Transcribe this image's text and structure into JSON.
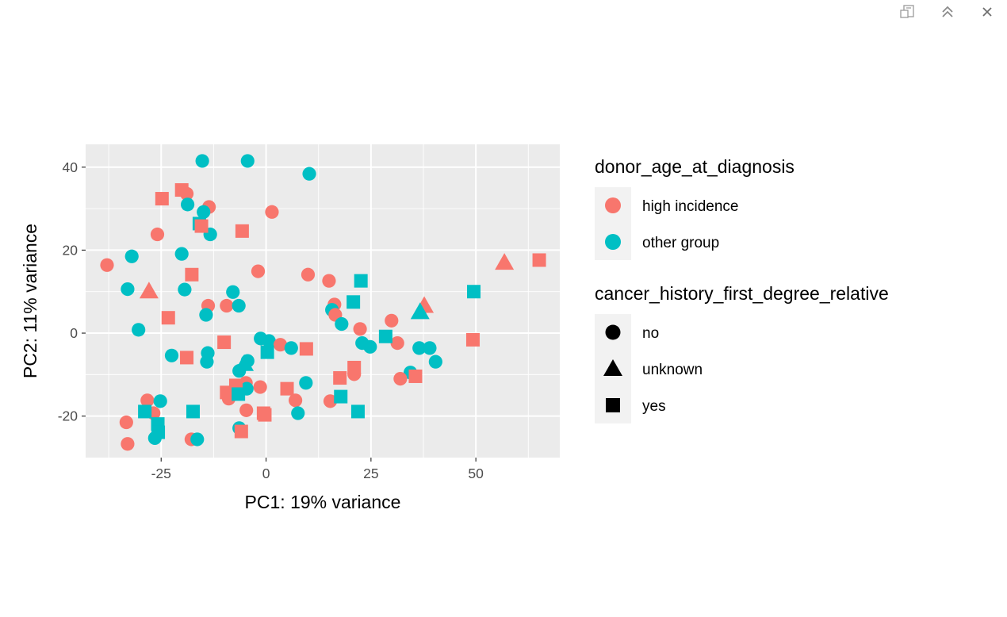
{
  "toolbar": {
    "items": [
      {
        "icon": "export-icon"
      },
      {
        "icon": "collapse-icon"
      },
      {
        "icon": "close-icon"
      }
    ]
  },
  "chart_data": {
    "type": "scatter",
    "xlabel": "PC1: 19% variance",
    "ylabel": "PC2: 11% variance",
    "xlim": [
      -43,
      70
    ],
    "ylim": [
      -30,
      45.5
    ],
    "x_ticks": [
      -25,
      0,
      25,
      50
    ],
    "x_tick_labels": [
      "-25",
      "0",
      "25",
      "50"
    ],
    "y_ticks": [
      -20,
      0,
      20,
      40
    ],
    "y_tick_labels": [
      "-20",
      "0",
      "20",
      "40"
    ],
    "grid": true,
    "panel_background": "#ebebeb",
    "legend_position": "right",
    "legends": [
      {
        "title": "donor_age_at_diagnosis",
        "key": "color",
        "entries": [
          {
            "label": "high incidence",
            "color": "#f8766d"
          },
          {
            "label": "other group",
            "color": "#00bfc4"
          }
        ]
      },
      {
        "title": "cancer_history_first_degree_relative",
        "key": "shape",
        "entries": [
          {
            "label": "no",
            "shape": "circle"
          },
          {
            "label": "unknown",
            "shape": "triangle"
          },
          {
            "label": "yes",
            "shape": "square"
          }
        ]
      }
    ],
    "points": [
      {
        "x": -15.2,
        "y": 41.5,
        "group": "other group",
        "shape": "no"
      },
      {
        "x": -4.4,
        "y": 41.5,
        "group": "other group",
        "shape": "no"
      },
      {
        "x": 10.3,
        "y": 38.4,
        "group": "other group",
        "shape": "no"
      },
      {
        "x": -18.9,
        "y": 33.6,
        "group": "high incidence",
        "shape": "no"
      },
      {
        "x": -13.6,
        "y": 30.4,
        "group": "high incidence",
        "shape": "no"
      },
      {
        "x": 1.4,
        "y": 29.2,
        "group": "high incidence",
        "shape": "no"
      },
      {
        "x": -18.7,
        "y": 31.0,
        "group": "other group",
        "shape": "no"
      },
      {
        "x": -14.9,
        "y": 29.2,
        "group": "other group",
        "shape": "no"
      },
      {
        "x": -25.9,
        "y": 23.8,
        "group": "high incidence",
        "shape": "no"
      },
      {
        "x": -13.3,
        "y": 23.8,
        "group": "other group",
        "shape": "no"
      },
      {
        "x": -37.9,
        "y": 16.4,
        "group": "high incidence",
        "shape": "no"
      },
      {
        "x": -32.0,
        "y": 18.5,
        "group": "other group",
        "shape": "no"
      },
      {
        "x": -20.1,
        "y": 19.1,
        "group": "other group",
        "shape": "no"
      },
      {
        "x": -1.9,
        "y": 14.9,
        "group": "high incidence",
        "shape": "no"
      },
      {
        "x": 10.0,
        "y": 14.1,
        "group": "high incidence",
        "shape": "no"
      },
      {
        "x": 15.0,
        "y": 12.6,
        "group": "high incidence",
        "shape": "no"
      },
      {
        "x": -33.0,
        "y": 10.6,
        "group": "other group",
        "shape": "no"
      },
      {
        "x": -19.4,
        "y": 10.5,
        "group": "other group",
        "shape": "no"
      },
      {
        "x": -7.9,
        "y": 9.9,
        "group": "other group",
        "shape": "no"
      },
      {
        "x": -13.8,
        "y": 6.6,
        "group": "high incidence",
        "shape": "no"
      },
      {
        "x": -9.4,
        "y": 6.6,
        "group": "high incidence",
        "shape": "no"
      },
      {
        "x": -6.5,
        "y": 6.6,
        "group": "other group",
        "shape": "no"
      },
      {
        "x": 16.3,
        "y": 6.9,
        "group": "high incidence",
        "shape": "no"
      },
      {
        "x": 15.7,
        "y": 5.6,
        "group": "other group",
        "shape": "no"
      },
      {
        "x": 16.5,
        "y": 4.4,
        "group": "high incidence",
        "shape": "no"
      },
      {
        "x": -14.3,
        "y": 4.4,
        "group": "other group",
        "shape": "no"
      },
      {
        "x": 18.0,
        "y": 2.2,
        "group": "other group",
        "shape": "no"
      },
      {
        "x": 29.9,
        "y": 3.0,
        "group": "high incidence",
        "shape": "no"
      },
      {
        "x": -30.4,
        "y": 0.8,
        "group": "other group",
        "shape": "no"
      },
      {
        "x": 22.4,
        "y": 1.0,
        "group": "high incidence",
        "shape": "no"
      },
      {
        "x": -1.3,
        "y": -1.3,
        "group": "other group",
        "shape": "no"
      },
      {
        "x": 0.7,
        "y": -1.9,
        "group": "other group",
        "shape": "no"
      },
      {
        "x": 3.4,
        "y": -2.8,
        "group": "high incidence",
        "shape": "no"
      },
      {
        "x": 6.0,
        "y": -3.6,
        "group": "other group",
        "shape": "no"
      },
      {
        "x": 22.9,
        "y": -2.4,
        "group": "other group",
        "shape": "no"
      },
      {
        "x": 24.8,
        "y": -3.3,
        "group": "other group",
        "shape": "no"
      },
      {
        "x": 31.3,
        "y": -2.4,
        "group": "high incidence",
        "shape": "no"
      },
      {
        "x": 36.5,
        "y": -3.6,
        "group": "other group",
        "shape": "no"
      },
      {
        "x": 39.0,
        "y": -3.6,
        "group": "other group",
        "shape": "no"
      },
      {
        "x": -22.5,
        "y": -5.4,
        "group": "other group",
        "shape": "no"
      },
      {
        "x": -13.9,
        "y": -4.8,
        "group": "other group",
        "shape": "no"
      },
      {
        "x": -14.1,
        "y": -6.9,
        "group": "other group",
        "shape": "no"
      },
      {
        "x": -4.4,
        "y": -6.7,
        "group": "other group",
        "shape": "no"
      },
      {
        "x": -6.4,
        "y": -9.1,
        "group": "other group",
        "shape": "no"
      },
      {
        "x": 40.4,
        "y": -6.9,
        "group": "other group",
        "shape": "no"
      },
      {
        "x": 34.4,
        "y": -9.5,
        "group": "other group",
        "shape": "no"
      },
      {
        "x": 21.0,
        "y": -9.9,
        "group": "high incidence",
        "shape": "no"
      },
      {
        "x": 32.0,
        "y": -11.0,
        "group": "high incidence",
        "shape": "no"
      },
      {
        "x": -4.8,
        "y": -12.0,
        "group": "high incidence",
        "shape": "no"
      },
      {
        "x": 9.5,
        "y": -12.0,
        "group": "other group",
        "shape": "no"
      },
      {
        "x": -1.4,
        "y": -13.0,
        "group": "high incidence",
        "shape": "no"
      },
      {
        "x": -4.6,
        "y": -13.4,
        "group": "other group",
        "shape": "no"
      },
      {
        "x": -8.9,
        "y": -15.8,
        "group": "high incidence",
        "shape": "no"
      },
      {
        "x": 7.0,
        "y": -16.2,
        "group": "high incidence",
        "shape": "no"
      },
      {
        "x": 15.3,
        "y": -16.4,
        "group": "high incidence",
        "shape": "no"
      },
      {
        "x": -28.3,
        "y": -16.2,
        "group": "high incidence",
        "shape": "no"
      },
      {
        "x": -25.2,
        "y": -16.4,
        "group": "other group",
        "shape": "no"
      },
      {
        "x": -4.7,
        "y": -18.6,
        "group": "high incidence",
        "shape": "no"
      },
      {
        "x": 7.6,
        "y": -19.3,
        "group": "other group",
        "shape": "no"
      },
      {
        "x": -33.3,
        "y": -21.5,
        "group": "high incidence",
        "shape": "no"
      },
      {
        "x": -26.8,
        "y": -19.3,
        "group": "high incidence",
        "shape": "no"
      },
      {
        "x": -6.4,
        "y": -22.9,
        "group": "other group",
        "shape": "no"
      },
      {
        "x": -26.5,
        "y": -25.3,
        "group": "other group",
        "shape": "no"
      },
      {
        "x": -17.8,
        "y": -25.6,
        "group": "high incidence",
        "shape": "no"
      },
      {
        "x": -16.4,
        "y": -25.6,
        "group": "other group",
        "shape": "no"
      },
      {
        "x": -33.0,
        "y": -26.7,
        "group": "high incidence",
        "shape": "no"
      },
      {
        "x": -27.9,
        "y": 10.1,
        "group": "high incidence",
        "shape": "unknown"
      },
      {
        "x": 56.8,
        "y": 17.0,
        "group": "high incidence",
        "shape": "unknown"
      },
      {
        "x": 37.7,
        "y": 6.6,
        "group": "high incidence",
        "shape": "unknown"
      },
      {
        "x": 36.7,
        "y": 5.1,
        "group": "other group",
        "shape": "unknown"
      },
      {
        "x": -5.2,
        "y": -7.4,
        "group": "other group",
        "shape": "unknown"
      },
      {
        "x": -24.8,
        "y": 32.4,
        "group": "high incidence",
        "shape": "yes"
      },
      {
        "x": -20.1,
        "y": 34.5,
        "group": "high incidence",
        "shape": "yes"
      },
      {
        "x": -15.9,
        "y": 26.4,
        "group": "other group",
        "shape": "yes"
      },
      {
        "x": -15.4,
        "y": 25.8,
        "group": "high incidence",
        "shape": "yes"
      },
      {
        "x": -5.7,
        "y": 24.6,
        "group": "high incidence",
        "shape": "yes"
      },
      {
        "x": -17.7,
        "y": 14.1,
        "group": "high incidence",
        "shape": "yes"
      },
      {
        "x": 22.6,
        "y": 12.6,
        "group": "other group",
        "shape": "yes"
      },
      {
        "x": 49.5,
        "y": 10.0,
        "group": "other group",
        "shape": "yes"
      },
      {
        "x": 65.1,
        "y": 17.6,
        "group": "high incidence",
        "shape": "yes"
      },
      {
        "x": 20.8,
        "y": 7.5,
        "group": "other group",
        "shape": "yes"
      },
      {
        "x": -23.3,
        "y": 3.7,
        "group": "high incidence",
        "shape": "yes"
      },
      {
        "x": -10.0,
        "y": -2.2,
        "group": "high incidence",
        "shape": "yes"
      },
      {
        "x": 9.6,
        "y": -3.8,
        "group": "high incidence",
        "shape": "yes"
      },
      {
        "x": 0.3,
        "y": -4.6,
        "group": "other group",
        "shape": "yes"
      },
      {
        "x": 28.5,
        "y": -0.8,
        "group": "other group",
        "shape": "yes"
      },
      {
        "x": 49.3,
        "y": -1.6,
        "group": "high incidence",
        "shape": "yes"
      },
      {
        "x": -18.9,
        "y": -5.9,
        "group": "high incidence",
        "shape": "yes"
      },
      {
        "x": 21.0,
        "y": -8.3,
        "group": "high incidence",
        "shape": "yes"
      },
      {
        "x": 17.6,
        "y": -10.8,
        "group": "high incidence",
        "shape": "yes"
      },
      {
        "x": 35.6,
        "y": -10.4,
        "group": "high incidence",
        "shape": "yes"
      },
      {
        "x": 5.0,
        "y": -13.4,
        "group": "high incidence",
        "shape": "yes"
      },
      {
        "x": -7.2,
        "y": -12.6,
        "group": "high incidence",
        "shape": "yes"
      },
      {
        "x": -9.4,
        "y": -14.3,
        "group": "high incidence",
        "shape": "yes"
      },
      {
        "x": -6.6,
        "y": -14.7,
        "group": "other group",
        "shape": "yes"
      },
      {
        "x": 17.8,
        "y": -15.3,
        "group": "other group",
        "shape": "yes"
      },
      {
        "x": -28.9,
        "y": -18.9,
        "group": "other group",
        "shape": "yes"
      },
      {
        "x": -17.4,
        "y": -18.9,
        "group": "other group",
        "shape": "yes"
      },
      {
        "x": -0.6,
        "y": -19.3,
        "group": "high incidence",
        "shape": "yes"
      },
      {
        "x": -0.3,
        "y": -19.7,
        "group": "high incidence",
        "shape": "yes"
      },
      {
        "x": 21.9,
        "y": -18.9,
        "group": "other group",
        "shape": "yes"
      },
      {
        "x": -25.8,
        "y": -21.9,
        "group": "other group",
        "shape": "yes"
      },
      {
        "x": -25.7,
        "y": -23.9,
        "group": "other group",
        "shape": "yes"
      },
      {
        "x": -5.9,
        "y": -23.7,
        "group": "high incidence",
        "shape": "yes"
      }
    ]
  }
}
